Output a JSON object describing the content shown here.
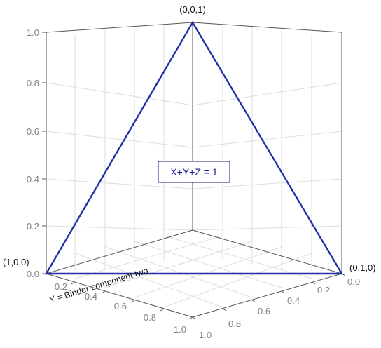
{
  "vertices": {
    "top": "(0,0,1)",
    "left": "(1,0,0)",
    "right": "(0,1,0)"
  },
  "equation": "X+Y+Z = 1",
  "axis_y_label": "Y = Binder component two",
  "z_ticks": [
    "0.0",
    "0.2",
    "0.4",
    "0.6",
    "0.8",
    "1.0"
  ],
  "left_base_ticks": [
    "0.2",
    "0.4",
    "0.6",
    "0.8",
    "1.0"
  ],
  "right_base_ticks": [
    "0.0",
    "0.2",
    "0.4",
    "0.6",
    "0.8",
    "1.0"
  ],
  "colors": {
    "triangle": "#2030a8",
    "grid": "#dddddd"
  }
}
